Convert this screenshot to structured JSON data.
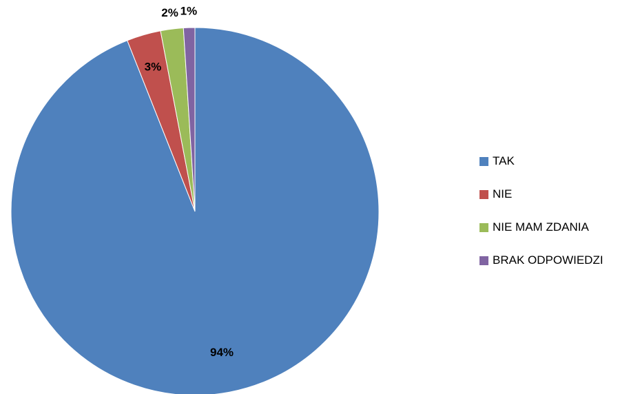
{
  "chart_data": {
    "type": "pie",
    "categories": [
      "TAK",
      "NIE",
      "NIE MAM ZDANIA",
      "BRAK ODPOWIEDZI"
    ],
    "values": [
      94,
      3,
      2,
      1
    ],
    "data_labels": [
      "94%",
      "3%",
      "2%",
      "1%"
    ],
    "colors": [
      "#4F81BD",
      "#C0504D",
      "#9BBB59",
      "#8064A2"
    ],
    "legend_position": "right",
    "title": ""
  }
}
